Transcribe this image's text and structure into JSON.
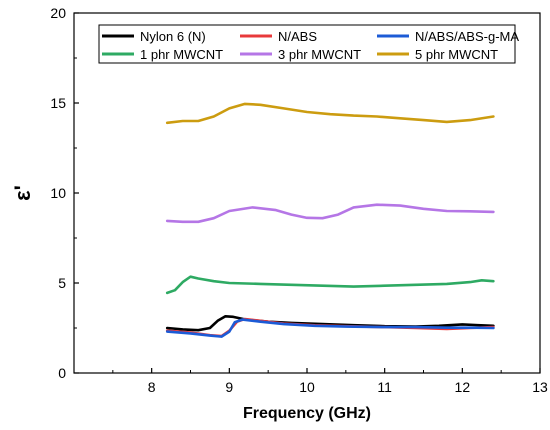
{
  "chart_data": {
    "type": "line",
    "title": "",
    "xlabel": "Frequency (GHz)",
    "ylabel": "ε'",
    "xlim": [
      7,
      13
    ],
    "ylim": [
      0,
      20
    ],
    "x_ticks": [
      8,
      9,
      10,
      11,
      12,
      13
    ],
    "y_ticks": [
      0,
      5,
      10,
      15,
      20
    ],
    "grid": false,
    "legend_position": "top",
    "series": [
      {
        "name": "Nylon 6 (N)",
        "color": "#000000",
        "points": [
          [
            8.2,
            2.5
          ],
          [
            8.4,
            2.42
          ],
          [
            8.6,
            2.38
          ],
          [
            8.75,
            2.5
          ],
          [
            8.85,
            2.9
          ],
          [
            8.95,
            3.15
          ],
          [
            9.05,
            3.12
          ],
          [
            9.2,
            2.98
          ],
          [
            9.5,
            2.85
          ],
          [
            9.8,
            2.78
          ],
          [
            10.2,
            2.72
          ],
          [
            10.6,
            2.66
          ],
          [
            11.0,
            2.6
          ],
          [
            11.4,
            2.58
          ],
          [
            11.7,
            2.62
          ],
          [
            12.0,
            2.7
          ],
          [
            12.2,
            2.66
          ],
          [
            12.4,
            2.62
          ]
        ]
      },
      {
        "name": "N/ABS",
        "color": "#e8393b",
        "points": [
          [
            8.2,
            2.35
          ],
          [
            8.5,
            2.25
          ],
          [
            8.75,
            2.1
          ],
          [
            8.9,
            2.05
          ],
          [
            9.0,
            2.35
          ],
          [
            9.1,
            2.85
          ],
          [
            9.2,
            3.0
          ],
          [
            9.4,
            2.9
          ],
          [
            9.7,
            2.75
          ],
          [
            10.1,
            2.65
          ],
          [
            10.5,
            2.6
          ],
          [
            11.0,
            2.55
          ],
          [
            11.4,
            2.5
          ],
          [
            11.8,
            2.45
          ],
          [
            12.1,
            2.5
          ],
          [
            12.4,
            2.55
          ]
        ]
      },
      {
        "name": "N/ABS/ABS-g-MA",
        "color": "#1c5bd6",
        "points": [
          [
            8.2,
            2.3
          ],
          [
            8.5,
            2.2
          ],
          [
            8.75,
            2.08
          ],
          [
            8.9,
            2.02
          ],
          [
            9.0,
            2.3
          ],
          [
            9.07,
            2.82
          ],
          [
            9.17,
            2.97
          ],
          [
            9.4,
            2.85
          ],
          [
            9.7,
            2.72
          ],
          [
            10.1,
            2.62
          ],
          [
            10.5,
            2.58
          ],
          [
            11.0,
            2.55
          ],
          [
            11.4,
            2.55
          ],
          [
            11.8,
            2.52
          ],
          [
            12.1,
            2.52
          ],
          [
            12.4,
            2.5
          ]
        ]
      },
      {
        "name": "1 phr MWCNT",
        "color": "#2eaa63",
        "points": [
          [
            8.2,
            4.45
          ],
          [
            8.3,
            4.6
          ],
          [
            8.4,
            5.05
          ],
          [
            8.5,
            5.35
          ],
          [
            8.6,
            5.25
          ],
          [
            8.8,
            5.1
          ],
          [
            9.0,
            5.0
          ],
          [
            9.4,
            4.95
          ],
          [
            9.8,
            4.9
          ],
          [
            10.2,
            4.85
          ],
          [
            10.6,
            4.8
          ],
          [
            11.0,
            4.85
          ],
          [
            11.4,
            4.9
          ],
          [
            11.8,
            4.95
          ],
          [
            12.1,
            5.05
          ],
          [
            12.25,
            5.15
          ],
          [
            12.4,
            5.1
          ]
        ]
      },
      {
        "name": "3 phr MWCNT",
        "color": "#b576e6",
        "points": [
          [
            8.2,
            8.45
          ],
          [
            8.4,
            8.4
          ],
          [
            8.6,
            8.4
          ],
          [
            8.8,
            8.6
          ],
          [
            9.0,
            9.0
          ],
          [
            9.3,
            9.2
          ],
          [
            9.6,
            9.05
          ],
          [
            9.8,
            8.8
          ],
          [
            10.0,
            8.62
          ],
          [
            10.2,
            8.6
          ],
          [
            10.4,
            8.8
          ],
          [
            10.6,
            9.2
          ],
          [
            10.9,
            9.35
          ],
          [
            11.2,
            9.3
          ],
          [
            11.5,
            9.12
          ],
          [
            11.8,
            9.0
          ],
          [
            12.1,
            8.98
          ],
          [
            12.4,
            8.95
          ]
        ]
      },
      {
        "name": "5 phr MWCNT",
        "color": "#cc9c10",
        "points": [
          [
            8.2,
            13.9
          ],
          [
            8.4,
            14.0
          ],
          [
            8.6,
            14.0
          ],
          [
            8.8,
            14.25
          ],
          [
            9.0,
            14.7
          ],
          [
            9.2,
            14.95
          ],
          [
            9.4,
            14.9
          ],
          [
            9.7,
            14.7
          ],
          [
            10.0,
            14.5
          ],
          [
            10.3,
            14.38
          ],
          [
            10.6,
            14.3
          ],
          [
            10.9,
            14.25
          ],
          [
            11.2,
            14.15
          ],
          [
            11.5,
            14.05
          ],
          [
            11.8,
            13.95
          ],
          [
            12.1,
            14.05
          ],
          [
            12.4,
            14.25
          ]
        ]
      }
    ]
  }
}
